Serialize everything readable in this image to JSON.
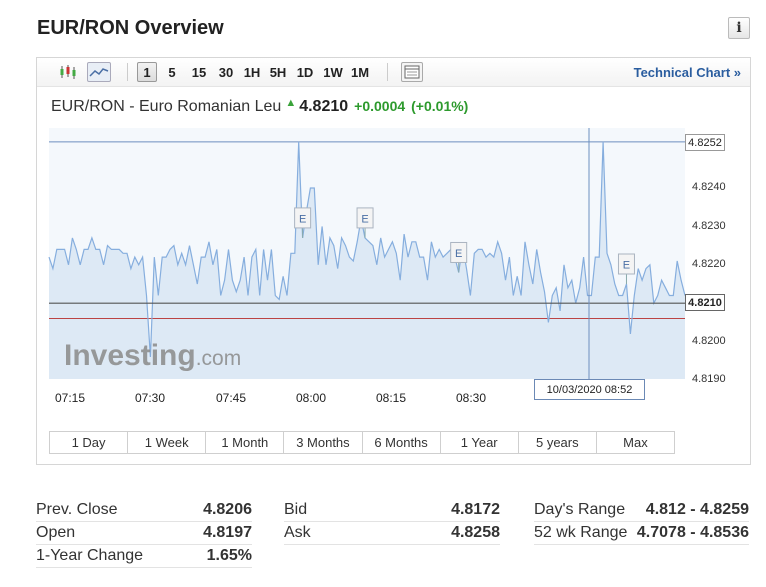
{
  "header": {
    "title": "EUR/RON Overview",
    "info_label": "i"
  },
  "toolbar": {
    "timeframes": [
      "1",
      "5",
      "15",
      "30",
      "1H",
      "5H",
      "1D",
      "1W",
      "1M"
    ],
    "active_timeframe": "1",
    "technical_chart": "Technical Chart »"
  },
  "quote": {
    "name": "EUR/RON - Euro Romanian Leu",
    "price": "4.8210",
    "change": "+0.0004",
    "change_pct": "(+0.01%)",
    "up_color": "#2d9a2d"
  },
  "chart_data": {
    "type": "line",
    "x_ticks": [
      "07:15",
      "07:30",
      "07:45",
      "08:00",
      "08:15",
      "08:30"
    ],
    "y_ticks": [
      "4.8240",
      "4.8230",
      "4.8220",
      "4.8200",
      "4.8190"
    ],
    "ylim": [
      4.819,
      4.8255
    ],
    "high_label": "4.8252",
    "current_label": "4.8210",
    "crosshair_label": "10/03/2020 08:52",
    "watermark": "Investing",
    "watermark_suffix": ".com",
    "event_marker": "E",
    "events_x_index": [
      65,
      81,
      105,
      148
    ],
    "values": [
      4.8222,
      4.8219,
      4.8224,
      4.8224,
      4.8224,
      4.822,
      4.8227,
      4.8224,
      4.822,
      4.8224,
      4.8224,
      4.8227,
      4.8224,
      4.8224,
      4.822,
      4.8225,
      4.8224,
      4.8224,
      4.8224,
      4.8223,
      4.8223,
      4.8219,
      4.8222,
      4.822,
      4.8222,
      4.8212,
      4.8196,
      4.8222,
      4.8212,
      4.8222,
      4.8222,
      4.8224,
      4.8225,
      4.822,
      4.8223,
      4.822,
      4.8225,
      4.822,
      4.8215,
      4.8222,
      4.8222,
      4.8226,
      4.822,
      4.8224,
      4.8212,
      4.8216,
      4.8224,
      4.8216,
      4.8213,
      4.8216,
      4.8222,
      4.8212,
      4.8222,
      4.8224,
      4.8212,
      4.8224,
      4.8216,
      4.8224,
      4.8212,
      4.8211,
      4.8217,
      4.8212,
      4.8223,
      4.8223,
      4.8252,
      4.8227,
      4.8234,
      4.824,
      4.824,
      4.822,
      4.823,
      4.822,
      4.8227,
      4.8225,
      4.8219,
      4.8227,
      4.8225,
      4.8222,
      4.8221,
      4.8226,
      4.8232,
      4.8227,
      4.8226,
      4.8225,
      4.822,
      4.8227,
      4.8222,
      4.8224,
      4.8226,
      4.8223,
      4.8216,
      4.8228,
      4.8222,
      4.8226,
      4.8226,
      4.8222,
      4.8222,
      4.8216,
      4.8226,
      4.8222,
      4.8224,
      4.8222,
      4.8223,
      4.8224,
      4.8222,
      4.8218,
      4.8225,
      4.8219,
      4.8212,
      4.8223,
      4.8224,
      4.8224,
      4.8222,
      4.8223,
      4.8222,
      4.8226,
      4.8223,
      4.8216,
      4.8222,
      4.8212,
      4.8217,
      4.8212,
      4.8226,
      4.822,
      4.8215,
      4.8224,
      4.8218,
      4.8213,
      4.8205,
      4.8212,
      4.8214,
      4.8208,
      4.822,
      4.8214,
      4.8216,
      4.821,
      4.8214,
      4.8222,
      4.8212,
      4.8212,
      4.8222,
      4.8222,
      4.8252,
      4.8223,
      4.822,
      4.8215,
      4.8212,
      4.8212,
      4.8215,
      4.8202,
      4.8212,
      4.8219,
      4.8216,
      4.8219,
      4.822,
      4.821,
      4.8212,
      4.8216,
      4.8214,
      4.8212,
      4.8212,
      4.8221,
      4.8216,
      4.8212
    ]
  },
  "ranges": [
    "1 Day",
    "1 Week",
    "1 Month",
    "3 Months",
    "6 Months",
    "1 Year",
    "5 years",
    "Max"
  ],
  "stats": {
    "col1": [
      {
        "label": "Prev. Close",
        "value": "4.8206"
      },
      {
        "label": "Open",
        "value": "4.8197"
      },
      {
        "label": "1-Year Change",
        "value": "1.65%"
      }
    ],
    "col2": [
      {
        "label": "Bid",
        "value": "4.8172"
      },
      {
        "label": "Ask",
        "value": "4.8258"
      }
    ],
    "col3": [
      {
        "label": "Day's Range",
        "value": "4.812 - 4.8259"
      },
      {
        "label": "52 wk Range",
        "value": "4.7078 - 4.8536"
      }
    ]
  }
}
